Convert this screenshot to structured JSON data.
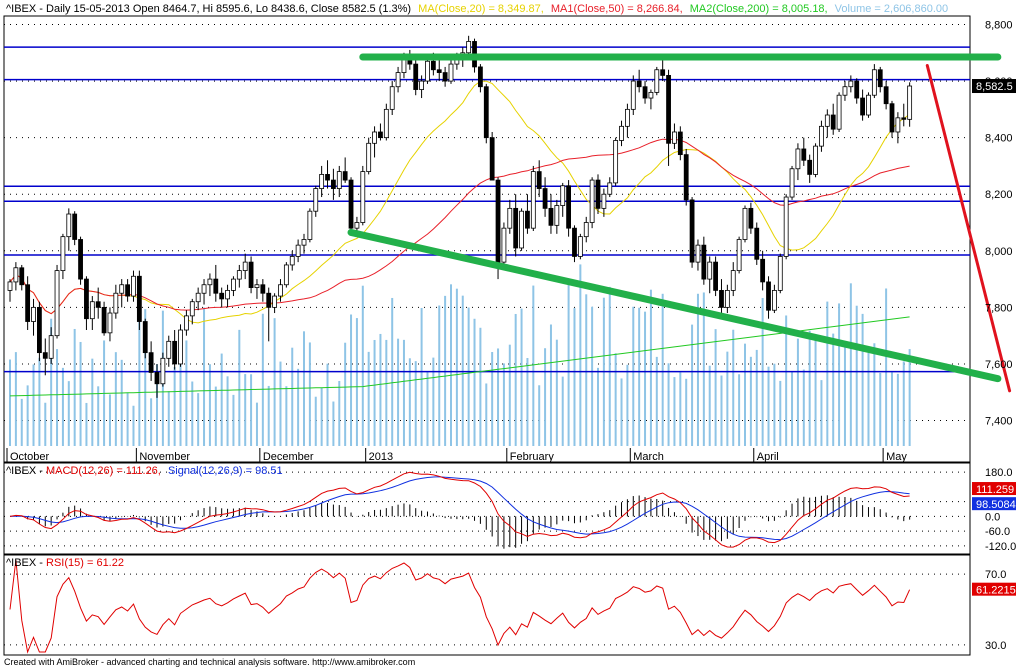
{
  "header": {
    "symbol_info": "^IBEX - Daily 15-05-2013 Open 8464.7, Hi 8595.6, Lo 8438.6, Close 8582.5 (1.3%)",
    "ma20": "MA(Close,20) = 8,349.87,",
    "ma50": "MA1(Close,50) = 8,266.84,",
    "ma200": "MA2(Close,200) = 8,005.18,",
    "volume": "Volume = 2,606,860.00"
  },
  "colors": {
    "ma20": "#e6d200",
    "ma50": "#e8202a",
    "ma200": "#22c922",
    "volume": "#8ec4e6",
    "hlines": "#0000cc",
    "trend_green": "#22b04a",
    "trend_red": "#e0121e",
    "macd": "#e00000",
    "signal": "#1030e0",
    "rsi": "#e00000"
  },
  "chart_data": [
    {
      "type": "candlestick",
      "title": "^IBEX - Daily 15-05-2013",
      "y_ticks": [
        "8,800",
        "8,600",
        "8,400",
        "8,200",
        "8,000",
        "7,800",
        "7,600",
        "7,400"
      ],
      "y_tick_values": [
        8800,
        8600,
        8400,
        8200,
        8000,
        7800,
        7600,
        7400
      ],
      "ylim": [
        7310,
        8830
      ],
      "last_close_label": "8,582.5",
      "last_close": 8582.5,
      "x_months": [
        "October",
        "November",
        "December",
        "2013",
        "February",
        "March",
        "April",
        "May"
      ],
      "x_month_days": [
        0,
        22,
        43,
        61,
        85,
        106,
        127,
        149
      ],
      "n_days": 155,
      "horizontal_lines": [
        8720,
        8605,
        8228,
        8175,
        7985,
        7573
      ],
      "trendlines": [
        {
          "name": "resistance",
          "color": "green",
          "from": [
            60,
            8685
          ],
          "to": [
            168,
            8685
          ]
        },
        {
          "name": "support",
          "color": "green",
          "from": [
            58,
            8065
          ],
          "to": [
            168,
            7548
          ]
        },
        {
          "name": "projection",
          "color": "red",
          "from": [
            156,
            8655
          ],
          "to": [
            170,
            7505
          ]
        }
      ],
      "ohlc": [
        [
          7860,
          7900,
          7820,
          7890
        ],
        [
          7890,
          7960,
          7860,
          7940
        ],
        [
          7940,
          7950,
          7860,
          7880
        ],
        [
          7880,
          7910,
          7720,
          7750
        ],
        [
          7750,
          7830,
          7700,
          7800
        ],
        [
          7800,
          7820,
          7610,
          7640
        ],
        [
          7640,
          7690,
          7560,
          7620
        ],
        [
          7620,
          7730,
          7600,
          7700
        ],
        [
          7700,
          7950,
          7690,
          7930
        ],
        [
          7930,
          8060,
          7900,
          8050
        ],
        [
          8050,
          8150,
          8000,
          8130
        ],
        [
          8130,
          8140,
          8020,
          8040
        ],
        [
          8040,
          8050,
          7880,
          7900
        ],
        [
          7900,
          7910,
          7720,
          7760
        ],
        [
          7760,
          7840,
          7720,
          7820
        ],
        [
          7820,
          7870,
          7760,
          7800
        ],
        [
          7800,
          7820,
          7700,
          7710
        ],
        [
          7710,
          7800,
          7680,
          7780
        ],
        [
          7780,
          7880,
          7760,
          7850
        ],
        [
          7850,
          7900,
          7800,
          7880
        ],
        [
          7880,
          7900,
          7820,
          7840
        ],
        [
          7840,
          7930,
          7820,
          7910
        ],
        [
          7910,
          7930,
          7720,
          7750
        ],
        [
          7750,
          7760,
          7620,
          7640
        ],
        [
          7640,
          7680,
          7540,
          7570
        ],
        [
          7570,
          7600,
          7480,
          7530
        ],
        [
          7530,
          7640,
          7520,
          7620
        ],
        [
          7620,
          7700,
          7590,
          7680
        ],
        [
          7680,
          7720,
          7580,
          7600
        ],
        [
          7600,
          7740,
          7590,
          7720
        ],
        [
          7720,
          7790,
          7700,
          7770
        ],
        [
          7770,
          7830,
          7740,
          7820
        ],
        [
          7820,
          7870,
          7790,
          7850
        ],
        [
          7850,
          7900,
          7810,
          7880
        ],
        [
          7880,
          7920,
          7840,
          7900
        ],
        [
          7900,
          7950,
          7820,
          7850
        ],
        [
          7850,
          7870,
          7800,
          7830
        ],
        [
          7830,
          7880,
          7800,
          7860
        ],
        [
          7860,
          7910,
          7840,
          7900
        ],
        [
          7900,
          7950,
          7870,
          7930
        ],
        [
          7930,
          7990,
          7900,
          7960
        ],
        [
          7960,
          7980,
          7850,
          7870
        ],
        [
          7870,
          7900,
          7830,
          7880
        ],
        [
          7880,
          7900,
          7820,
          7850
        ],
        [
          7850,
          7870,
          7680,
          7800
        ],
        [
          7800,
          7850,
          7780,
          7840
        ],
        [
          7840,
          7900,
          7820,
          7880
        ],
        [
          7880,
          7960,
          7870,
          7950
        ],
        [
          7950,
          8000,
          7930,
          7980
        ],
        [
          7980,
          8040,
          7960,
          8020
        ],
        [
          8020,
          8060,
          7990,
          8040
        ],
        [
          8040,
          8150,
          8030,
          8140
        ],
        [
          8140,
          8230,
          8120,
          8220
        ],
        [
          8220,
          8300,
          8190,
          8270
        ],
        [
          8270,
          8320,
          8220,
          8250
        ],
        [
          8250,
          8290,
          8180,
          8220
        ],
        [
          8220,
          8300,
          8190,
          8280
        ],
        [
          8280,
          8330,
          8240,
          8250
        ],
        [
          8250,
          8260,
          8060,
          8080
        ],
        [
          8080,
          8120,
          8060,
          8100
        ],
        [
          8100,
          8300,
          8090,
          8280
        ],
        [
          8280,
          8400,
          8270,
          8380
        ],
        [
          8380,
          8440,
          8330,
          8420
        ],
        [
          8420,
          8450,
          8390,
          8400
        ],
        [
          8400,
          8520,
          8390,
          8500
        ],
        [
          8500,
          8600,
          8480,
          8580
        ],
        [
          8580,
          8650,
          8560,
          8630
        ],
        [
          8630,
          8700,
          8610,
          8690
        ],
        [
          8690,
          8710,
          8640,
          8660
        ],
        [
          8660,
          8680,
          8550,
          8570
        ],
        [
          8570,
          8620,
          8540,
          8600
        ],
        [
          8600,
          8690,
          8590,
          8670
        ],
        [
          8670,
          8700,
          8620,
          8640
        ],
        [
          8640,
          8680,
          8600,
          8630
        ],
        [
          8630,
          8650,
          8580,
          8600
        ],
        [
          8600,
          8680,
          8590,
          8660
        ],
        [
          8660,
          8700,
          8640,
          8680
        ],
        [
          8680,
          8720,
          8650,
          8700
        ],
        [
          8700,
          8760,
          8680,
          8740
        ],
        [
          8740,
          8750,
          8630,
          8650
        ],
        [
          8650,
          8660,
          8560,
          8580
        ],
        [
          8580,
          8590,
          8380,
          8400
        ],
        [
          8400,
          8420,
          8260,
          8250
        ],
        [
          8250,
          8260,
          7900,
          7960
        ],
        [
          7960,
          8100,
          7940,
          8080
        ],
        [
          8080,
          8180,
          8060,
          8150
        ],
        [
          8150,
          8200,
          7980,
          8010
        ],
        [
          8010,
          8150,
          8000,
          8140
        ],
        [
          8140,
          8200,
          8060,
          8080
        ],
        [
          8080,
          8300,
          8070,
          8280
        ],
        [
          8280,
          8320,
          8190,
          8220
        ],
        [
          8220,
          8260,
          8120,
          8150
        ],
        [
          8150,
          8200,
          8060,
          8090
        ],
        [
          8090,
          8180,
          8060,
          8160
        ],
        [
          8160,
          8240,
          8120,
          8230
        ],
        [
          8230,
          8250,
          8050,
          8080
        ],
        [
          8080,
          8090,
          7960,
          7980
        ],
        [
          7980,
          8060,
          7970,
          8050
        ],
        [
          8050,
          8120,
          8030,
          8100
        ],
        [
          8100,
          8260,
          8080,
          8250
        ],
        [
          8250,
          8270,
          8130,
          8150
        ],
        [
          8150,
          8220,
          8120,
          8200
        ],
        [
          8200,
          8260,
          8190,
          8240
        ],
        [
          8240,
          8400,
          8230,
          8390
        ],
        [
          8390,
          8460,
          8370,
          8440
        ],
        [
          8440,
          8520,
          8400,
          8500
        ],
        [
          8500,
          8620,
          8480,
          8600
        ],
        [
          8600,
          8640,
          8560,
          8580
        ],
        [
          8580,
          8600,
          8520,
          8540
        ],
        [
          8540,
          8570,
          8500,
          8560
        ],
        [
          8560,
          8650,
          8550,
          8640
        ],
        [
          8640,
          8680,
          8600,
          8620
        ],
        [
          8620,
          8640,
          8300,
          8380
        ],
        [
          8380,
          8450,
          8360,
          8420
        ],
        [
          8420,
          8440,
          8320,
          8340
        ],
        [
          8340,
          8360,
          8160,
          8180
        ],
        [
          8180,
          8190,
          7940,
          7960
        ],
        [
          7960,
          8040,
          7930,
          8020
        ],
        [
          8020,
          8050,
          7880,
          7900
        ],
        [
          7900,
          7980,
          7850,
          7960
        ],
        [
          7960,
          7980,
          7840,
          7860
        ],
        [
          7860,
          7900,
          7780,
          7800
        ],
        [
          7800,
          7880,
          7780,
          7860
        ],
        [
          7860,
          7960,
          7840,
          7930
        ],
        [
          7930,
          8050,
          7920,
          8040
        ],
        [
          8040,
          8160,
          8030,
          8150
        ],
        [
          8150,
          8170,
          8060,
          8080
        ],
        [
          8080,
          8100,
          7950,
          7970
        ],
        [
          7970,
          8000,
          7860,
          7890
        ],
        [
          7890,
          7910,
          7760,
          7790
        ],
        [
          7790,
          7880,
          7780,
          7860
        ],
        [
          7860,
          7990,
          7850,
          7980
        ],
        [
          7980,
          8200,
          7970,
          8190
        ],
        [
          8190,
          8300,
          8180,
          8290
        ],
        [
          8290,
          8380,
          8250,
          8360
        ],
        [
          8360,
          8400,
          8300,
          8320
        ],
        [
          8320,
          8340,
          8240,
          8270
        ],
        [
          8270,
          8380,
          8260,
          8370
        ],
        [
          8370,
          8460,
          8350,
          8440
        ],
        [
          8440,
          8500,
          8400,
          8480
        ],
        [
          8480,
          8520,
          8410,
          8430
        ],
        [
          8430,
          8560,
          8420,
          8550
        ],
        [
          8550,
          8600,
          8530,
          8580
        ],
        [
          8580,
          8620,
          8560,
          8600
        ],
        [
          8600,
          8610,
          8520,
          8540
        ],
        [
          8540,
          8570,
          8460,
          8480
        ],
        [
          8480,
          8560,
          8470,
          8550
        ],
        [
          8550,
          8660,
          8540,
          8640
        ],
        [
          8640,
          8650,
          8560,
          8580
        ],
        [
          8580,
          8600,
          8500,
          8520
        ],
        [
          8520,
          8530,
          8400,
          8420
        ],
        [
          8420,
          8490,
          8380,
          8470
        ],
        [
          8470,
          8520,
          8440,
          8464.7
        ],
        [
          8464.7,
          8595.6,
          8438.6,
          8582.5
        ]
      ],
      "volume_max_frac": 0.7
    },
    {
      "type": "line",
      "title": "^IBEX - MACD(12,26) = 111.26, Signal(12,26,9) = 98.51",
      "series": [
        {
          "name": "MACD(12,26)",
          "last": 111.26
        },
        {
          "name": "Signal(12,26,9)",
          "last": 98.51
        }
      ],
      "y_ticks": [
        "180.0",
        "60.0",
        "0.0",
        "-60.0",
        "-120.0"
      ],
      "y_tick_values": [
        180,
        60,
        0,
        -60,
        -120
      ],
      "ylim": [
        -145,
        205
      ],
      "macd_label": "111.259",
      "signal_label": "98.5084"
    },
    {
      "type": "line",
      "title": "^IBEX - RSI(15) = 61.22",
      "series": [
        {
          "name": "RSI(15)",
          "last": 61.22
        }
      ],
      "y_ticks": [
        "70.0",
        "30.0"
      ],
      "y_tick_values": [
        70,
        30
      ],
      "ylim": [
        26,
        78
      ],
      "rsi_label": "61.2215"
    }
  ],
  "labels": {
    "macd_title_prefix": "^IBEX - ",
    "macd_name": "MACD(12,26) = 111.26,",
    "signal_name": "Signal(12,26,9) = 98.51",
    "rsi_title_prefix": "^IBEX - ",
    "rsi_name": "RSI(15) = 61.22"
  },
  "footer": "Created with AmiBroker - advanced charting and technical analysis software. http://www.amibroker.com"
}
